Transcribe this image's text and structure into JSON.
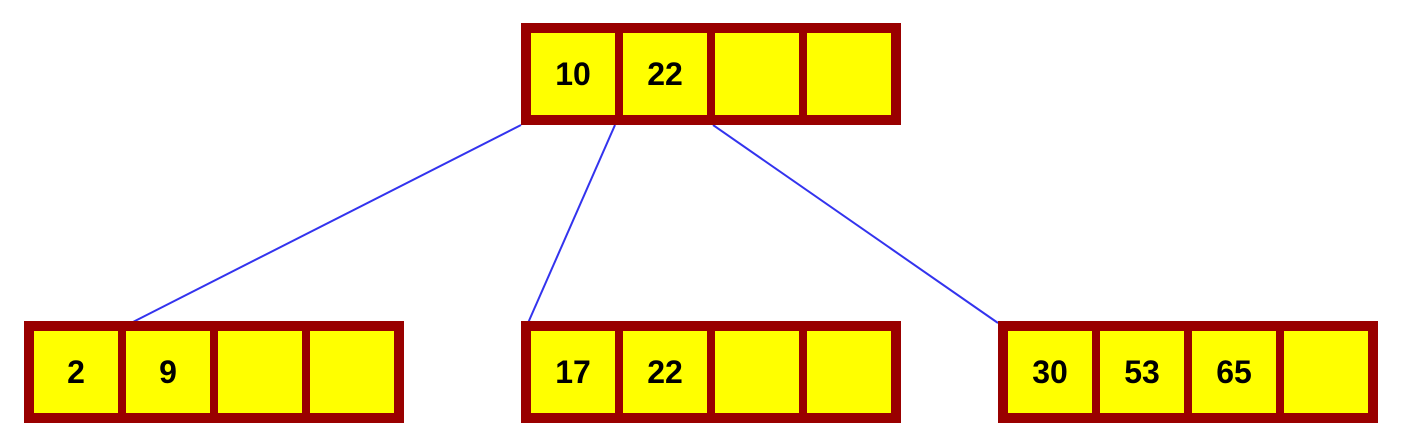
{
  "colors": {
    "node_border": "#990000",
    "slot_fill": "#ffff00",
    "edge": "#3333ee",
    "text": "#000000"
  },
  "tree": {
    "root": {
      "keys": [
        "10",
        "22",
        "",
        ""
      ]
    },
    "children": [
      {
        "keys": [
          "2",
          "9",
          "",
          ""
        ]
      },
      {
        "keys": [
          "17",
          "22",
          "",
          ""
        ]
      },
      {
        "keys": [
          "30",
          "53",
          "65",
          ""
        ]
      }
    ]
  }
}
